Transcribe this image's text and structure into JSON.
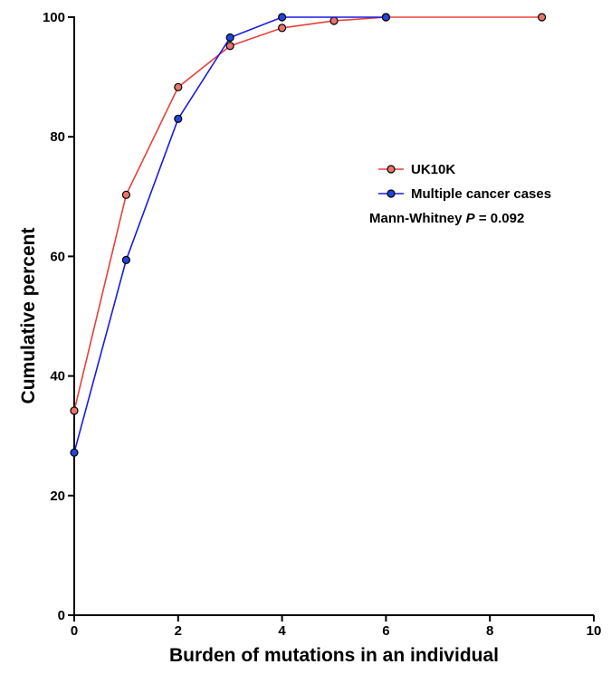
{
  "chart_data": {
    "type": "line",
    "title": "",
    "xlabel": "Burden of mutations in an individual",
    "ylabel": "Cumulative percent",
    "xlim": [
      0,
      10
    ],
    "ylim": [
      0,
      100
    ],
    "x_ticks": [
      0,
      2,
      4,
      6,
      8,
      10
    ],
    "y_ticks": [
      0,
      20,
      40,
      60,
      80,
      100
    ],
    "grid": false,
    "legend_position": "right",
    "series": [
      {
        "name": "UK10K",
        "color": "#e8403a",
        "marker_fill": "#e8746b",
        "x": [
          0,
          1,
          2,
          3,
          4,
          5,
          6,
          9
        ],
        "y": [
          34.2,
          70.3,
          88.3,
          95.2,
          98.2,
          99.4,
          100,
          100
        ]
      },
      {
        "name": "Multiple cancer cases",
        "color": "#1a1ae0",
        "marker_fill": "#2244dd",
        "x": [
          0,
          1,
          2,
          3,
          4,
          6
        ],
        "y": [
          27.2,
          59.4,
          83.0,
          96.6,
          100,
          100
        ]
      }
    ],
    "annotation": {
      "prefix": "Mann-Whitney ",
      "stat": "P",
      "suffix": " = 0.092"
    }
  }
}
